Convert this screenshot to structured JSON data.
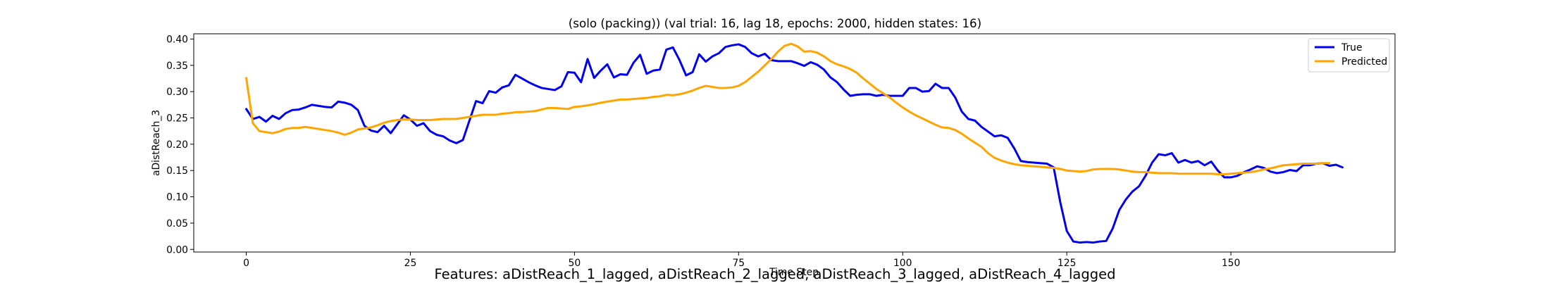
{
  "chart_data": {
    "type": "line",
    "title": "(solo (packing)) (val trial: 16, lag 18, epochs: 2000, hidden states: 16)",
    "xlabel": "Time Step",
    "ylabel": "aDistReach_3",
    "xlim": [
      -8,
      175
    ],
    "ylim": [
      -0.005,
      0.41
    ],
    "xticks": [
      0,
      25,
      50,
      75,
      100,
      125,
      150
    ],
    "yticks": [
      0.0,
      0.05,
      0.1,
      0.15,
      0.2,
      0.25,
      0.3,
      0.35,
      0.4
    ],
    "ytick_labels": [
      "0.00",
      "0.05",
      "0.10",
      "0.15",
      "0.20",
      "0.25",
      "0.30",
      "0.35",
      "0.40"
    ],
    "grid": false,
    "legend_position": "top-right",
    "series": [
      {
        "name": "True",
        "color": "#0000ee",
        "values": [
          0.267,
          0.248,
          0.252,
          0.243,
          0.254,
          0.248,
          0.259,
          0.265,
          0.266,
          0.27,
          0.275,
          0.273,
          0.271,
          0.27,
          0.281,
          0.279,
          0.275,
          0.265,
          0.235,
          0.226,
          0.223,
          0.235,
          0.221,
          0.238,
          0.255,
          0.247,
          0.235,
          0.24,
          0.225,
          0.218,
          0.215,
          0.207,
          0.202,
          0.208,
          0.245,
          0.282,
          0.278,
          0.301,
          0.298,
          0.308,
          0.312,
          0.332,
          0.325,
          0.318,
          0.312,
          0.307,
          0.305,
          0.303,
          0.31,
          0.337,
          0.336,
          0.318,
          0.362,
          0.326,
          0.34,
          0.352,
          0.327,
          0.333,
          0.332,
          0.355,
          0.37,
          0.334,
          0.34,
          0.342,
          0.38,
          0.384,
          0.36,
          0.331,
          0.337,
          0.371,
          0.357,
          0.367,
          0.373,
          0.385,
          0.388,
          0.39,
          0.385,
          0.373,
          0.367,
          0.372,
          0.36,
          0.358,
          0.358,
          0.358,
          0.354,
          0.349,
          0.356,
          0.351,
          0.342,
          0.327,
          0.318,
          0.304,
          0.292,
          0.294,
          0.295,
          0.295,
          0.292,
          0.294,
          0.292,
          0.292,
          0.292,
          0.307,
          0.307,
          0.3,
          0.301,
          0.315,
          0.307,
          0.307,
          0.289,
          0.262,
          0.248,
          0.245,
          0.233,
          0.224,
          0.215,
          0.217,
          0.212,
          0.192,
          0.168,
          0.166,
          0.165,
          0.164,
          0.163,
          0.156,
          0.09,
          0.035,
          0.015,
          0.013,
          0.014,
          0.013,
          0.015,
          0.016,
          0.04,
          0.075,
          0.095,
          0.11,
          0.12,
          0.14,
          0.165,
          0.181,
          0.179,
          0.183,
          0.165,
          0.17,
          0.165,
          0.168,
          0.16,
          0.167,
          0.15,
          0.137,
          0.137,
          0.14,
          0.147,
          0.152,
          0.158,
          0.155,
          0.148,
          0.145,
          0.147,
          0.151,
          0.149,
          0.16,
          0.16,
          0.163,
          0.164,
          0.159,
          0.161,
          0.156
        ]
      },
      {
        "name": "Predicted",
        "color": "#ffa500",
        "values": [
          0.326,
          0.24,
          0.225,
          0.223,
          0.221,
          0.224,
          0.229,
          0.231,
          0.231,
          0.233,
          0.231,
          0.229,
          0.227,
          0.225,
          0.222,
          0.218,
          0.222,
          0.228,
          0.23,
          0.232,
          0.236,
          0.241,
          0.244,
          0.246,
          0.247,
          0.247,
          0.246,
          0.246,
          0.246,
          0.247,
          0.248,
          0.248,
          0.248,
          0.25,
          0.252,
          0.254,
          0.256,
          0.256,
          0.256,
          0.258,
          0.259,
          0.261,
          0.261,
          0.262,
          0.263,
          0.266,
          0.269,
          0.269,
          0.268,
          0.267,
          0.271,
          0.272,
          0.274,
          0.276,
          0.279,
          0.281,
          0.283,
          0.285,
          0.285,
          0.286,
          0.287,
          0.288,
          0.29,
          0.291,
          0.294,
          0.293,
          0.295,
          0.298,
          0.302,
          0.307,
          0.311,
          0.309,
          0.307,
          0.307,
          0.308,
          0.311,
          0.318,
          0.328,
          0.338,
          0.35,
          0.362,
          0.376,
          0.387,
          0.391,
          0.386,
          0.376,
          0.377,
          0.374,
          0.367,
          0.358,
          0.352,
          0.348,
          0.343,
          0.336,
          0.325,
          0.315,
          0.305,
          0.297,
          0.289,
          0.279,
          0.27,
          0.262,
          0.255,
          0.249,
          0.243,
          0.237,
          0.232,
          0.231,
          0.227,
          0.22,
          0.211,
          0.203,
          0.195,
          0.183,
          0.174,
          0.169,
          0.165,
          0.162,
          0.16,
          0.159,
          0.158,
          0.157,
          0.156,
          0.155,
          0.153,
          0.15,
          0.149,
          0.148,
          0.149,
          0.152,
          0.153,
          0.153,
          0.153,
          0.152,
          0.15,
          0.148,
          0.147,
          0.147,
          0.146,
          0.145,
          0.145,
          0.145,
          0.144,
          0.144,
          0.144,
          0.144,
          0.144,
          0.144,
          0.143,
          0.143,
          0.144,
          0.145,
          0.146,
          0.147,
          0.149,
          0.152,
          0.154,
          0.157,
          0.16,
          0.161,
          0.162,
          0.163,
          0.163,
          0.163,
          0.164,
          0.164
        ]
      }
    ]
  },
  "footer": {
    "features": "Features: aDistReach_1_lagged, aDistReach_2_lagged, aDistReach_3_lagged, aDistReach_4_lagged"
  }
}
